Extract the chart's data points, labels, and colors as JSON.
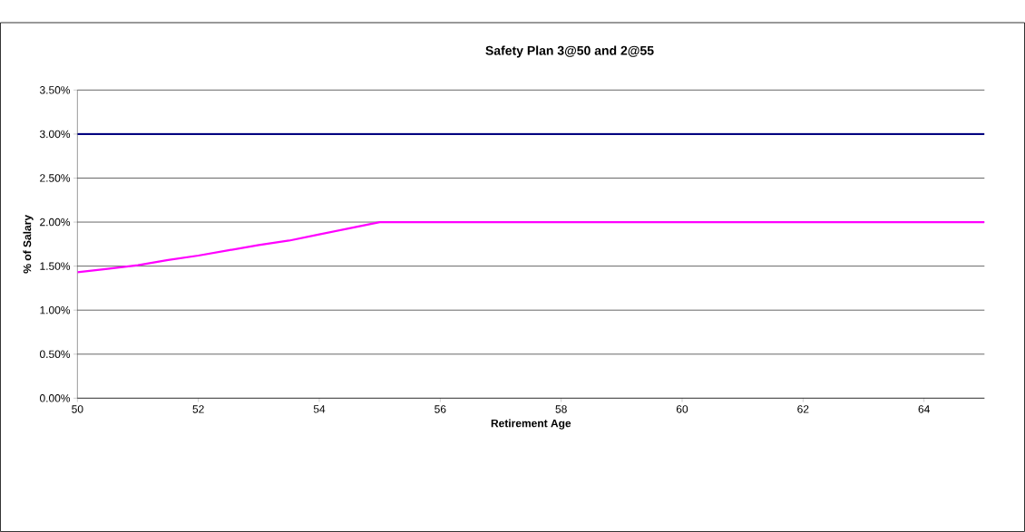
{
  "chart_data": {
    "type": "line",
    "title": "Safety Plan 3@50 and 2@55",
    "xlabel": "Retirement Age",
    "ylabel": "% of Salary",
    "xlim": [
      50,
      65
    ],
    "xticks": [
      50,
      52,
      54,
      56,
      58,
      60,
      62,
      64
    ],
    "ylim": [
      0,
      3.5
    ],
    "yticks": [
      {
        "value": 0,
        "label": "0.00%"
      },
      {
        "value": 0.5,
        "label": "0.50%"
      },
      {
        "value": 1,
        "label": "1.00%"
      },
      {
        "value": 1.5,
        "label": "1.50%"
      },
      {
        "value": 2,
        "label": "2.00%"
      },
      {
        "value": 2.5,
        "label": "2.50%"
      },
      {
        "value": 3,
        "label": "3.00%"
      },
      {
        "value": 3.5,
        "label": "3.50%"
      }
    ],
    "grid": "y",
    "legend": false,
    "marker": "none",
    "line_style": "solid",
    "series": [
      {
        "color": "#000080",
        "x": [
          50,
          65
        ],
        "values": [
          3.0,
          3.0
        ]
      },
      {
        "color": "#ff00ff",
        "x": [
          50,
          50.5,
          51,
          51.5,
          52,
          52.5,
          53,
          53.5,
          54,
          54.5,
          55,
          65
        ],
        "values": [
          1.43,
          1.47,
          1.51,
          1.57,
          1.62,
          1.68,
          1.74,
          1.79,
          1.86,
          1.93,
          2.0,
          2.0
        ]
      }
    ]
  }
}
